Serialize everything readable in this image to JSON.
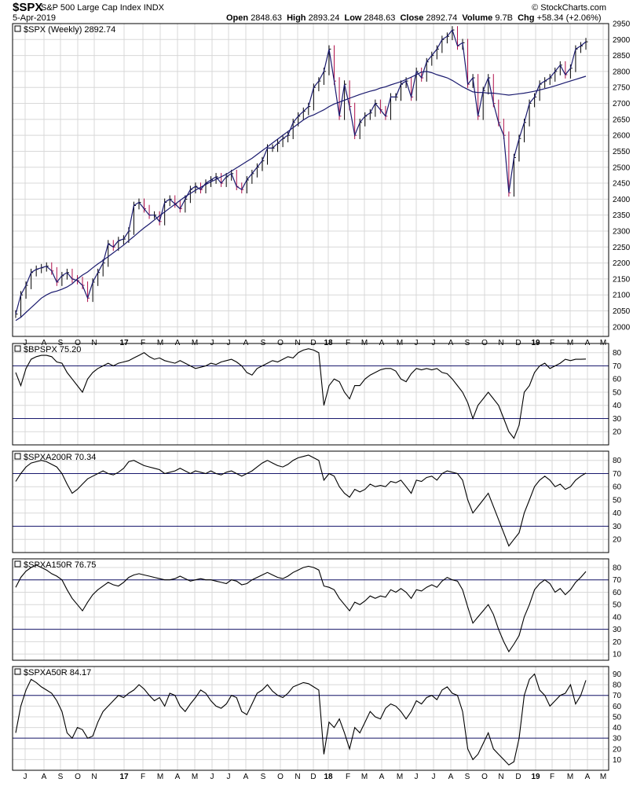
{
  "header": {
    "symbol": "$SPX",
    "name": "S&P 500 Large Cap Index",
    "exchange": "INDX",
    "date": "5-Apr-2019",
    "open_label": "Open",
    "open": "2848.63",
    "high_label": "High",
    "high": "2893.24",
    "low_label": "Low",
    "low": "2848.63",
    "close_label": "Close",
    "close": "2892.74",
    "volume_label": "Volume",
    "volume": "9.7B",
    "chg_label": "Chg",
    "chg": "+58.34 (+2.06%)",
    "credit": "© StockCharts.com"
  },
  "colors": {
    "price_line": "#000000",
    "price_ma": "#1a1a6e",
    "down_bar": "#b0104a",
    "grid": "#d8d8d8",
    "ref_line": "#1a1a6e",
    "indicator_line": "#000000"
  },
  "chart_data": [
    {
      "type": "line",
      "title": "$SPX (Weekly) 2892.74",
      "x_month_labels": [
        "J",
        "A",
        "S",
        "O",
        "N",
        "17",
        "F",
        "M",
        "A",
        "M",
        "J",
        "J",
        "A",
        "S",
        "O",
        "N",
        "D",
        "18",
        "F",
        "M",
        "A",
        "M",
        "J",
        "J",
        "A",
        "S",
        "O",
        "N",
        "D",
        "19",
        "F",
        "M",
        "A",
        "M"
      ],
      "ylim": [
        1970,
        2950
      ],
      "yticks": [
        2000,
        2050,
        2100,
        2150,
        2200,
        2250,
        2300,
        2350,
        2400,
        2450,
        2500,
        2550,
        2600,
        2650,
        2700,
        2750,
        2800,
        2850,
        2900,
        2950
      ],
      "series": [
        {
          "role": "price",
          "values": [
            2040,
            2100,
            2130,
            2170,
            2180,
            2185,
            2190,
            2175,
            2140,
            2160,
            2170,
            2150,
            2145,
            2130,
            2090,
            2140,
            2170,
            2200,
            2260,
            2250,
            2270,
            2275,
            2300,
            2380,
            2390,
            2370,
            2350,
            2350,
            2330,
            2390,
            2400,
            2385,
            2370,
            2400,
            2430,
            2440,
            2430,
            2450,
            2460,
            2470,
            2450,
            2470,
            2480,
            2440,
            2430,
            2460,
            2480,
            2500,
            2520,
            2560,
            2560,
            2575,
            2590,
            2600,
            2640,
            2660,
            2675,
            2690,
            2750,
            2770,
            2800,
            2870,
            2770,
            2660,
            2760,
            2690,
            2600,
            2640,
            2660,
            2670,
            2700,
            2680,
            2660,
            2720,
            2720,
            2760,
            2770,
            2720,
            2800,
            2780,
            2830,
            2850,
            2870,
            2900,
            2910,
            2930,
            2880,
            2890,
            2760,
            2780,
            2660,
            2740,
            2780,
            2700,
            2640,
            2600,
            2420,
            2530,
            2590,
            2640,
            2700,
            2720,
            2760,
            2770,
            2780,
            2800,
            2820,
            2790,
            2810,
            2870,
            2880,
            2893
          ]
        },
        {
          "role": "moving_average",
          "values": [
            2020,
            2030,
            2045,
            2060,
            2075,
            2090,
            2100,
            2108,
            2112,
            2118,
            2125,
            2135,
            2150,
            2162,
            2172,
            2185,
            2197,
            2208,
            2220,
            2232,
            2244,
            2256,
            2270,
            2283,
            2297,
            2310,
            2322,
            2335,
            2348,
            2360,
            2372,
            2384,
            2396,
            2408,
            2418,
            2428,
            2437,
            2446,
            2454,
            2462,
            2470,
            2478,
            2488,
            2498,
            2508,
            2518,
            2528,
            2540,
            2552,
            2564,
            2576,
            2588,
            2600,
            2612,
            2624,
            2636,
            2648,
            2658,
            2664,
            2672,
            2680,
            2690,
            2698,
            2704,
            2710,
            2716,
            2722,
            2728,
            2733,
            2738,
            2742,
            2748,
            2752,
            2758,
            2763,
            2768,
            2775,
            2782,
            2790,
            2798,
            2800,
            2796,
            2790,
            2785,
            2780,
            2772,
            2762,
            2752,
            2744,
            2736,
            2734,
            2734,
            2732,
            2732,
            2730,
            2728,
            2726,
            2728,
            2730,
            2732,
            2735,
            2738,
            2742,
            2746,
            2750,
            2755,
            2760,
            2765,
            2770,
            2775,
            2780,
            2785
          ]
        }
      ]
    },
    {
      "type": "line",
      "title": "$BPSPX 75.20",
      "ylim": [
        10,
        87
      ],
      "yticks": [
        20,
        30,
        40,
        50,
        60,
        70,
        80
      ],
      "reference_lines": [
        30,
        70
      ],
      "values": [
        65,
        55,
        68,
        75,
        77,
        78,
        78,
        77,
        73,
        72,
        65,
        60,
        55,
        50,
        60,
        65,
        68,
        70,
        72,
        70,
        72,
        73,
        74,
        76,
        78,
        80,
        77,
        75,
        76,
        74,
        73,
        72,
        74,
        72,
        70,
        68,
        69,
        70,
        72,
        71,
        73,
        74,
        75,
        73,
        70,
        65,
        63,
        68,
        70,
        72,
        74,
        73,
        75,
        77,
        76,
        80,
        82,
        83,
        82,
        80,
        40,
        55,
        60,
        58,
        50,
        45,
        55,
        55,
        60,
        63,
        65,
        67,
        68,
        68,
        66,
        60,
        58,
        64,
        68,
        67,
        68,
        67,
        68,
        65,
        64,
        60,
        55,
        50,
        42,
        30,
        40,
        45,
        50,
        45,
        40,
        30,
        20,
        15,
        25,
        50,
        55,
        65,
        70,
        72,
        68,
        70,
        72,
        75,
        74,
        75,
        75,
        75.2
      ]
    },
    {
      "type": "line",
      "title": "$SPXA200R 70.34",
      "ylim": [
        10,
        87
      ],
      "yticks": [
        20,
        30,
        40,
        50,
        60,
        70,
        80
      ],
      "reference_lines": [
        30,
        70
      ],
      "values": [
        64,
        70,
        75,
        78,
        79,
        80,
        79,
        77,
        75,
        70,
        62,
        55,
        58,
        62,
        66,
        68,
        70,
        72,
        70,
        69,
        71,
        74,
        79,
        80,
        78,
        76,
        75,
        74,
        73,
        70,
        71,
        72,
        74,
        72,
        70,
        72,
        71,
        70,
        72,
        70,
        69,
        71,
        72,
        70,
        68,
        70,
        72,
        75,
        78,
        80,
        78,
        76,
        75,
        77,
        80,
        82,
        83,
        84,
        82,
        80,
        65,
        70,
        68,
        60,
        55,
        52,
        58,
        56,
        58,
        62,
        60,
        61,
        60,
        64,
        63,
        65,
        60,
        55,
        65,
        64,
        67,
        68,
        65,
        70,
        72,
        71,
        70,
        65,
        50,
        40,
        45,
        50,
        55,
        45,
        35,
        25,
        15,
        20,
        25,
        40,
        50,
        60,
        65,
        68,
        65,
        60,
        62,
        58,
        60,
        65,
        68,
        70.34
      ]
    },
    {
      "type": "line",
      "title": "$SPXA150R 76.75",
      "ylim": [
        5,
        87
      ],
      "yticks": [
        10,
        20,
        30,
        40,
        50,
        60,
        70,
        80
      ],
      "reference_lines": [
        30,
        70
      ],
      "values": [
        64,
        72,
        77,
        80,
        82,
        80,
        78,
        75,
        73,
        70,
        62,
        55,
        50,
        45,
        52,
        58,
        62,
        65,
        68,
        66,
        65,
        68,
        72,
        74,
        75,
        74,
        73,
        72,
        71,
        70,
        70,
        71,
        73,
        71,
        69,
        70,
        71,
        70,
        70,
        69,
        68,
        67,
        70,
        69,
        66,
        67,
        70,
        72,
        74,
        76,
        74,
        72,
        71,
        73,
        76,
        78,
        80,
        81,
        80,
        78,
        65,
        64,
        62,
        55,
        50,
        45,
        52,
        50,
        53,
        57,
        55,
        57,
        56,
        62,
        60,
        63,
        60,
        55,
        62,
        61,
        64,
        66,
        64,
        69,
        72,
        70,
        69,
        62,
        48,
        35,
        40,
        45,
        50,
        42,
        30,
        20,
        12,
        18,
        25,
        40,
        50,
        62,
        67,
        70,
        67,
        60,
        63,
        58,
        62,
        68,
        72,
        76.75
      ]
    },
    {
      "type": "line",
      "title": "$SPXA50R 84.17",
      "ylim": [
        0,
        97
      ],
      "yticks": [
        10,
        20,
        30,
        40,
        50,
        60,
        70,
        80,
        90
      ],
      "reference_lines": [
        30,
        70
      ],
      "values": [
        35,
        60,
        75,
        85,
        82,
        78,
        75,
        72,
        65,
        55,
        35,
        30,
        40,
        38,
        30,
        32,
        45,
        55,
        60,
        65,
        70,
        68,
        72,
        75,
        80,
        76,
        70,
        65,
        68,
        60,
        72,
        70,
        60,
        55,
        62,
        68,
        75,
        72,
        65,
        60,
        58,
        62,
        70,
        68,
        55,
        52,
        62,
        72,
        75,
        80,
        74,
        70,
        68,
        72,
        78,
        80,
        82,
        81,
        78,
        75,
        15,
        45,
        40,
        48,
        35,
        20,
        40,
        35,
        45,
        55,
        50,
        48,
        58,
        62,
        60,
        55,
        48,
        55,
        65,
        62,
        68,
        70,
        66,
        75,
        78,
        72,
        70,
        55,
        20,
        10,
        15,
        25,
        35,
        20,
        15,
        10,
        5,
        8,
        30,
        70,
        85,
        90,
        75,
        70,
        60,
        65,
        70,
        72,
        80,
        62,
        70,
        84.17
      ]
    }
  ]
}
